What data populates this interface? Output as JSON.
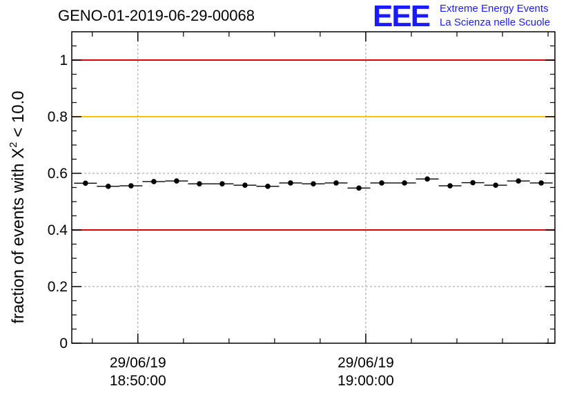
{
  "header": {
    "run_title": "GENO-01-2019-06-29-00068",
    "logo_mark": "EEE",
    "logo_line1": "Extreme Energy Events",
    "logo_line2": "La Scienza nelle Scuole"
  },
  "colors": {
    "threshold_red": "#e00000",
    "threshold_yellow": "#ffc000",
    "brand_blue": "#1a1aff"
  },
  "chart_data": {
    "type": "scatter",
    "title": "GENO-01-2019-06-29-00068",
    "ylabel": "fraction of events with χ² < 10.0",
    "ylabel_prefix": "fraction of events with ",
    "ylabel_symbol": "X",
    "ylabel_sup": "2",
    "ylabel_suffix": " < 10.0",
    "xlabel": "",
    "ylim": [
      0,
      1.1
    ],
    "yticks": [
      0,
      0.2,
      0.4,
      0.6,
      0.8,
      1
    ],
    "ytick_labels": [
      "0",
      "0.2",
      "0.4",
      "0.6",
      "0.8",
      "1"
    ],
    "xlim_minutes": [
      -2.9,
      18.3
    ],
    "xticks": [
      {
        "minute": 0,
        "date": "29/06/19",
        "time": "18:50:00"
      },
      {
        "minute": 10,
        "date": "29/06/19",
        "time": "19:00:00"
      }
    ],
    "x_minor_step_minutes": 2,
    "bin_width_minutes": 1,
    "grid": true,
    "thresholds": [
      {
        "value": 1.0,
        "color": "red"
      },
      {
        "value": 0.8,
        "color": "yellow"
      },
      {
        "value": 0.4,
        "color": "red"
      }
    ],
    "series": [
      {
        "name": "fraction",
        "x": [
          -2.3,
          -1.3,
          -0.3,
          0.7,
          1.7,
          2.7,
          3.7,
          4.7,
          5.7,
          6.7,
          7.7,
          8.7,
          9.7,
          10.7,
          11.7,
          12.7,
          13.7,
          14.7,
          15.7,
          16.7,
          17.7
        ],
        "values": [
          0.565,
          0.554,
          0.556,
          0.571,
          0.573,
          0.563,
          0.563,
          0.558,
          0.554,
          0.566,
          0.563,
          0.566,
          0.548,
          0.566,
          0.566,
          0.58,
          0.556,
          0.567,
          0.558,
          0.573,
          0.566
        ]
      }
    ]
  }
}
